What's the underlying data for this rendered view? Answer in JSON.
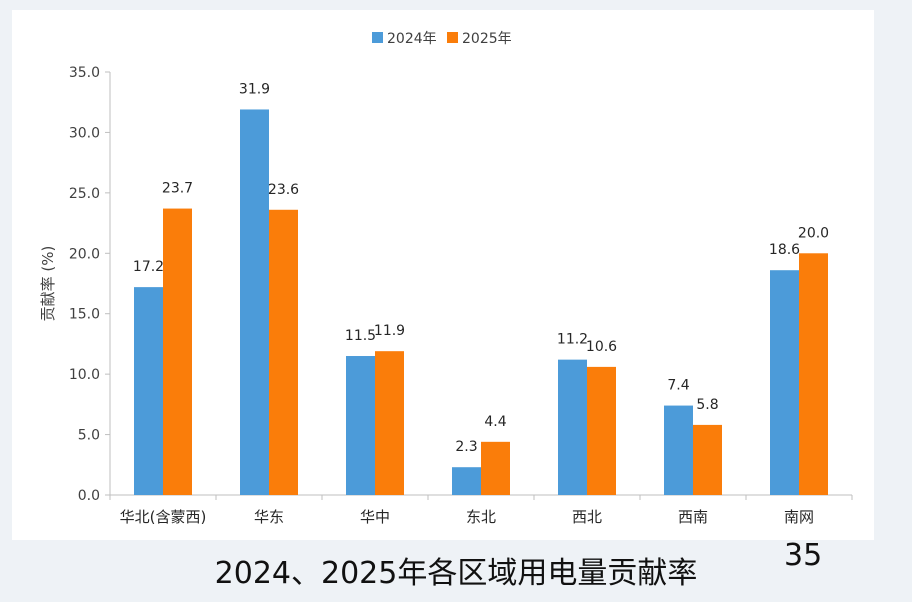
{
  "slide": {
    "caption": "2024、2025年各区域用电量贡献率",
    "page_number": "35"
  },
  "chart_data": {
    "type": "bar",
    "categories": [
      "华北(含蒙西)",
      "华东",
      "华中",
      "东北",
      "西北",
      "西南",
      "南网"
    ],
    "series": [
      {
        "name": "2024年",
        "color": "#4c9bd9",
        "values": [
          17.2,
          31.9,
          11.5,
          2.3,
          11.2,
          7.4,
          18.6
        ]
      },
      {
        "name": "2025年",
        "color": "#fa7d0a",
        "values": [
          23.7,
          23.6,
          11.9,
          4.4,
          10.6,
          5.8,
          20.0
        ]
      }
    ],
    "title": "",
    "xlabel": "",
    "ylabel": "贡献率 (%)",
    "ylim": [
      0,
      35
    ],
    "yticks": [
      "0.0",
      "5.0",
      "10.0",
      "15.0",
      "20.0",
      "25.0",
      "30.0",
      "35.0"
    ],
    "grid": false,
    "legend": "top-center"
  }
}
